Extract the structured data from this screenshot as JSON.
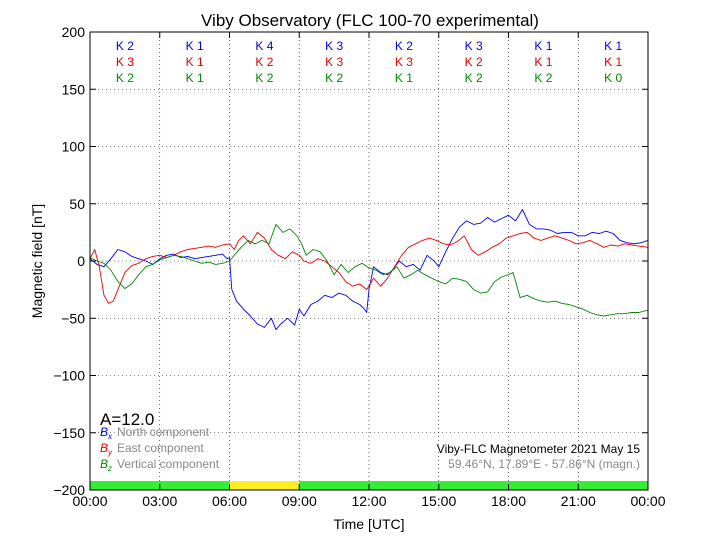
{
  "chart_data": {
    "type": "line",
    "title": "Viby Observatory (FLC 100-70 experimental)",
    "xlabel": "Time [UTC]",
    "ylabel": "Magnetic field [nT]",
    "xlim": [
      0,
      24
    ],
    "ylim": [
      -200,
      200
    ],
    "grid": true,
    "xticks": [
      {
        "value": 0,
        "label": "00:00"
      },
      {
        "value": 3,
        "label": "03:00"
      },
      {
        "value": 6,
        "label": "06:00"
      },
      {
        "value": 9,
        "label": "09:00"
      },
      {
        "value": 12,
        "label": "12:00"
      },
      {
        "value": 15,
        "label": "15:00"
      },
      {
        "value": 18,
        "label": "18:00"
      },
      {
        "value": 21,
        "label": "21:00"
      },
      {
        "value": 24,
        "label": "00:00"
      }
    ],
    "yticks": [
      {
        "value": 200,
        "label": "200"
      },
      {
        "value": 150,
        "label": "150"
      },
      {
        "value": 100,
        "label": "100"
      },
      {
        "value": 50,
        "label": "50"
      },
      {
        "value": 0,
        "label": "0"
      },
      {
        "value": -50,
        "label": "−50"
      },
      {
        "value": -100,
        "label": "−100"
      },
      {
        "value": -150,
        "label": "−150"
      },
      {
        "value": -200,
        "label": "−200"
      }
    ],
    "k_index_rows": [
      {
        "color": "#0000dd",
        "values": [
          "K 2",
          "K 1",
          "K 4",
          "K 3",
          "K 2",
          "K 3",
          "K 1",
          "K 1"
        ]
      },
      {
        "color": "#dd0000",
        "values": [
          "K 3",
          "K 1",
          "K 2",
          "K 3",
          "K 3",
          "K 2",
          "K 1",
          "K 1"
        ]
      },
      {
        "color": "#008800",
        "values": [
          "K 2",
          "K 1",
          "K 2",
          "K 2",
          "K 1",
          "K 2",
          "K 2",
          "K 0"
        ]
      }
    ],
    "activity_bar": [
      {
        "from": 0,
        "to": 6,
        "color": "#33ee33"
      },
      {
        "from": 6,
        "to": 9,
        "color": "#ffee22"
      },
      {
        "from": 9,
        "to": 24,
        "color": "#33ee33"
      }
    ],
    "a_index": "A=12.0",
    "legend_placement": "bottom-left",
    "series": [
      {
        "symbol": "B",
        "subscript": "x",
        "name": "North component",
        "color": "#0000ee",
        "x": [
          0,
          0.3,
          0.6,
          0.9,
          1.2,
          1.5,
          1.8,
          2.1,
          2.4,
          2.7,
          3.0,
          3.3,
          3.6,
          3.9,
          4.2,
          4.5,
          4.8,
          5.1,
          5.4,
          5.7,
          5.9,
          6.0,
          6.1,
          6.3,
          6.6,
          6.9,
          7.2,
          7.5,
          7.8,
          8.0,
          8.2,
          8.5,
          8.8,
          9.0,
          9.2,
          9.5,
          9.8,
          10.1,
          10.4,
          10.7,
          11.0,
          11.3,
          11.6,
          11.8,
          11.9,
          12.0,
          12.2,
          12.5,
          12.8,
          13.0,
          13.3,
          13.6,
          13.9,
          14.2,
          14.5,
          14.8,
          15.0,
          15.3,
          15.6,
          15.9,
          16.2,
          16.5,
          16.8,
          17.1,
          17.4,
          17.7,
          18.0,
          18.3,
          18.6,
          18.9,
          19.2,
          19.5,
          19.8,
          20.1,
          20.4,
          20.7,
          21.0,
          21.3,
          21.6,
          21.9,
          22.2,
          22.5,
          22.8,
          23.1,
          23.4,
          23.7,
          24.0
        ],
        "y": [
          2,
          -3,
          -5,
          2,
          10,
          8,
          4,
          2,
          0,
          -3,
          2,
          5,
          6,
          3,
          4,
          2,
          3,
          4,
          5,
          6,
          2,
          3,
          -25,
          -35,
          -42,
          -48,
          -55,
          -58,
          -50,
          -60,
          -55,
          -50,
          -56,
          -42,
          -48,
          -38,
          -35,
          -30,
          -32,
          -28,
          -30,
          -35,
          -38,
          -42,
          -45,
          -25,
          -5,
          -10,
          -12,
          -8,
          0,
          -5,
          -3,
          -8,
          5,
          0,
          -5,
          8,
          20,
          30,
          35,
          32,
          33,
          38,
          34,
          37,
          40,
          35,
          45,
          32,
          28,
          28,
          27,
          24,
          25,
          25,
          22,
          22,
          25,
          24,
          26,
          24,
          18,
          16,
          15,
          16,
          18
        ]
      },
      {
        "symbol": "B",
        "subscript": "y",
        "name": "East component",
        "color": "#ee0000",
        "x": [
          0,
          0.2,
          0.4,
          0.6,
          0.8,
          1.0,
          1.2,
          1.5,
          1.8,
          2.1,
          2.4,
          2.7,
          3.0,
          3.3,
          3.6,
          3.9,
          4.2,
          4.5,
          4.8,
          5.1,
          5.4,
          5.7,
          6.0,
          6.2,
          6.4,
          6.6,
          6.9,
          7.2,
          7.5,
          7.8,
          8.1,
          8.4,
          8.7,
          9.0,
          9.2,
          9.5,
          9.8,
          10.1,
          10.4,
          10.7,
          11.0,
          11.3,
          11.6,
          11.9,
          12.2,
          12.5,
          12.8,
          13.1,
          13.4,
          13.7,
          14.0,
          14.3,
          14.6,
          14.9,
          15.2,
          15.5,
          15.8,
          16.1,
          16.4,
          16.7,
          17.0,
          17.3,
          17.6,
          17.9,
          18.2,
          18.5,
          18.8,
          19.1,
          19.4,
          19.7,
          20.0,
          20.3,
          20.6,
          20.9,
          21.2,
          21.5,
          21.8,
          22.1,
          22.4,
          22.7,
          23.0,
          23.3,
          23.6,
          24.0
        ],
        "y": [
          2,
          10,
          -5,
          -30,
          -37,
          -35,
          -25,
          -10,
          -4,
          -2,
          2,
          4,
          5,
          3,
          5,
          8,
          10,
          11,
          12,
          13,
          12,
          14,
          15,
          10,
          18,
          22,
          15,
          25,
          20,
          10,
          5,
          2,
          8,
          5,
          0,
          -2,
          2,
          0,
          -5,
          -10,
          -18,
          -22,
          -20,
          -25,
          -15,
          -22,
          -15,
          -5,
          5,
          12,
          15,
          18,
          20,
          18,
          15,
          14,
          17,
          22,
          10,
          5,
          8,
          12,
          15,
          20,
          22,
          24,
          25,
          20,
          18,
          20,
          22,
          20,
          18,
          15,
          16,
          18,
          15,
          12,
          14,
          13,
          15,
          14,
          13,
          12
        ]
      },
      {
        "symbol": "B",
        "subscript": "z",
        "name": "Vertical component",
        "color": "#008800",
        "x": [
          0,
          0.3,
          0.6,
          0.9,
          1.2,
          1.5,
          1.8,
          2.1,
          2.4,
          2.7,
          3.0,
          3.3,
          3.6,
          3.9,
          4.2,
          4.5,
          4.8,
          5.1,
          5.4,
          5.7,
          6.0,
          6.2,
          6.5,
          6.8,
          7.1,
          7.4,
          7.7,
          8.0,
          8.3,
          8.6,
          8.9,
          9.1,
          9.3,
          9.6,
          9.9,
          10.2,
          10.5,
          10.8,
          11.1,
          11.4,
          11.7,
          12.0,
          12.3,
          12.6,
          12.9,
          13.2,
          13.5,
          13.8,
          14.1,
          14.4,
          14.7,
          15.0,
          15.3,
          15.6,
          15.9,
          16.2,
          16.5,
          16.8,
          17.1,
          17.4,
          17.7,
          18.0,
          18.2,
          18.5,
          18.8,
          19.1,
          19.4,
          19.7,
          20.0,
          20.3,
          20.6,
          20.9,
          21.2,
          21.5,
          21.8,
          22.1,
          22.4,
          22.7,
          23.0,
          23.3,
          23.6,
          24.0
        ],
        "y": [
          3,
          0,
          -2,
          -8,
          -18,
          -24,
          -20,
          -12,
          -5,
          -3,
          1,
          3,
          5,
          4,
          2,
          0,
          -2,
          -1,
          -3,
          -2,
          0,
          5,
          12,
          18,
          15,
          18,
          15,
          32,
          25,
          28,
          22,
          15,
          5,
          10,
          8,
          0,
          -12,
          -3,
          -10,
          -5,
          -2,
          -6,
          -8,
          -12,
          -10,
          -5,
          -15,
          -12,
          -8,
          -12,
          -15,
          -18,
          -20,
          -15,
          -16,
          -18,
          -25,
          -28,
          -27,
          -18,
          -14,
          -12,
          -10,
          -32,
          -30,
          -33,
          -35,
          -36,
          -35,
          -37,
          -38,
          -40,
          -42,
          -45,
          -47,
          -48,
          -47,
          -46,
          -46,
          -45,
          -45,
          -43
        ]
      }
    ],
    "info_text": {
      "line1": "Viby-FLC Magnetometer 2021 May 15",
      "line2": "59.46°N, 17.89°E - 57.86°N (magn.)"
    }
  }
}
